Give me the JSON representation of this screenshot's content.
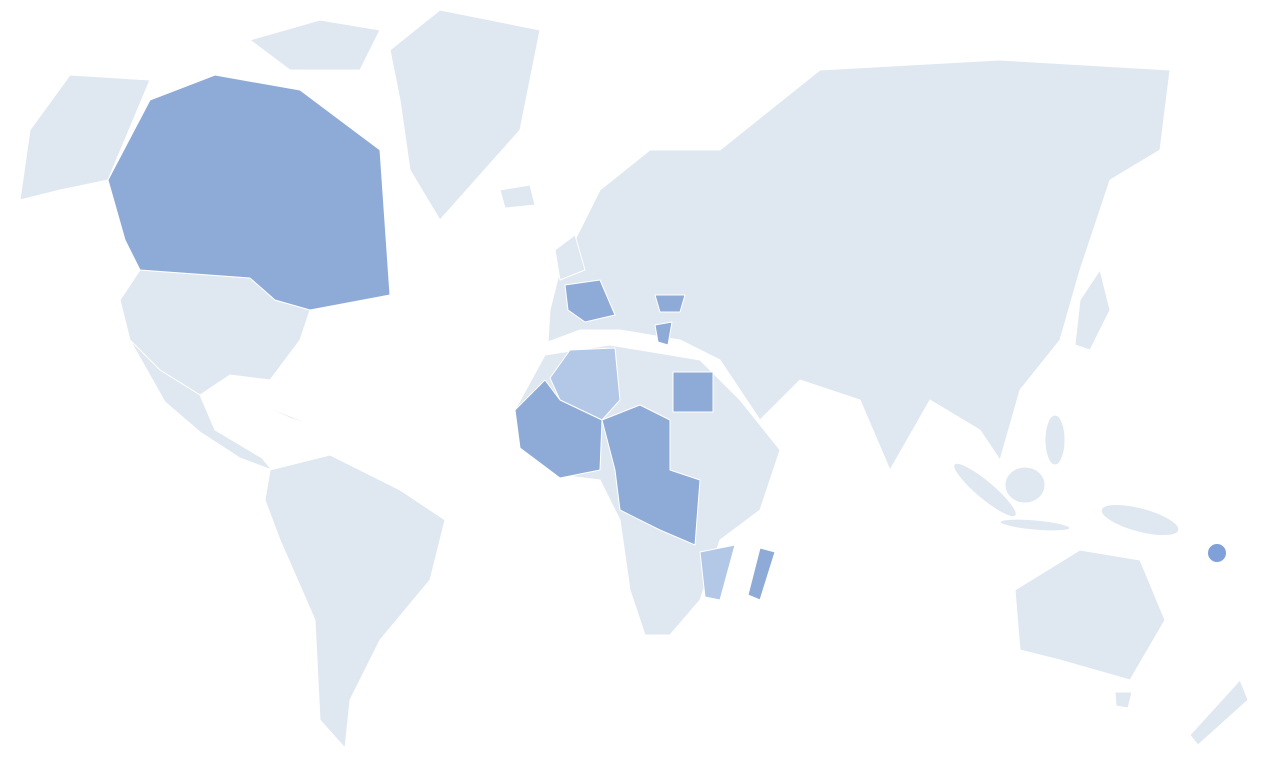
{
  "map": {
    "type": "choropleth",
    "colors": {
      "background": "#ffffff",
      "base": "#dfe7f1",
      "level_high": "#8eaad6",
      "level_low": "#b3c7e6",
      "marker": "#7fa0d8"
    },
    "regions": [
      {
        "id": "canada",
        "level": "high"
      },
      {
        "id": "france",
        "level": "high"
      },
      {
        "id": "romania",
        "level": "high"
      },
      {
        "id": "greece",
        "level": "high"
      },
      {
        "id": "egypt",
        "level": "high"
      },
      {
        "id": "west-africa",
        "level": "high"
      },
      {
        "id": "central-africa",
        "level": "high"
      },
      {
        "id": "madagascar",
        "level": "high"
      },
      {
        "id": "algeria",
        "level": "low"
      },
      {
        "id": "mozambique",
        "level": "low"
      }
    ],
    "markers": [
      {
        "id": "vanuatu",
        "level": "high"
      }
    ]
  }
}
